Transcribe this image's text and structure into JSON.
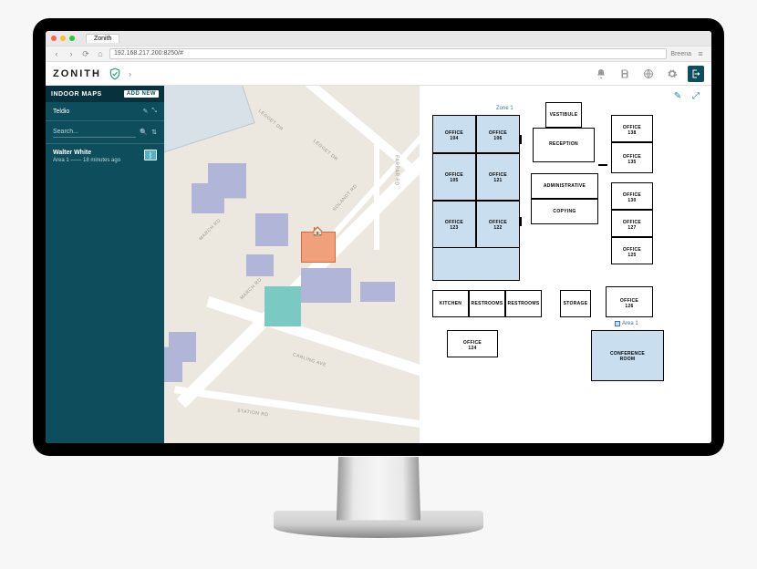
{
  "browser": {
    "traffic_colors": [
      "#ff5f57",
      "#febc2e",
      "#28c840"
    ],
    "tab_title": "Zonith",
    "url": "192.168.217.200:8250/#",
    "user": "Breena"
  },
  "appbar": {
    "logo": "ZONITH",
    "icons": [
      "bell",
      "save",
      "globe",
      "gear",
      "exit"
    ]
  },
  "sidebar": {
    "bg": "#0d4d5c",
    "header": "INDOOR MAPS",
    "add_new": "ADD NEW",
    "context": "Teldio",
    "search_placeholder": "Search...",
    "person": {
      "name": "Walter White",
      "area": "Area 1",
      "ago": "18 minutes ago"
    }
  },
  "map": {
    "bg": "#ece7df",
    "road_color": "#ffffff",
    "bldg_color": "#b1b5d8",
    "teal_color": "#7bc9c3",
    "orange_color": "#f0a07a",
    "roads": {
      "legget": "LEGGET DR",
      "march": "MARCH RD",
      "carling": "CARLING AVE",
      "station": "STATION RD",
      "farrar": "FARRAR RD",
      "solandt": "SOLANDT RD"
    }
  },
  "floorplan": {
    "zone_color": "#c9dff0",
    "border_color": "#000000",
    "zone_label": "Zone 1",
    "person_tag": "Walter White",
    "area_label": "Area 1",
    "rooms": {
      "o104": "OFFICE\n104",
      "o106": "OFFICE\n106",
      "o105": "OFFICE\n105",
      "o121": "OFFICE\n121",
      "o123": "OFFICE\n123",
      "o122": "OFFICE\n122",
      "vest": "VESTIBULE",
      "recept": "RECEPTION",
      "o138": "OFFICE\n138",
      "o135": "OFFICE\n135",
      "admin": "ADMINISTRATIVE",
      "copy": "COPYING",
      "o130": "OFFICE\n130",
      "o127": "OFFICE\n127",
      "o125": "OFFICE\n125",
      "kit": "KITCHEN",
      "rest1": "RESTROOMS",
      "rest2": "RESTROOMS",
      "stor": "STORAGE",
      "o126": "OFFICE\n126",
      "o124": "OFFICE\n124",
      "conf": "CONFERENCE\nROOM"
    }
  }
}
